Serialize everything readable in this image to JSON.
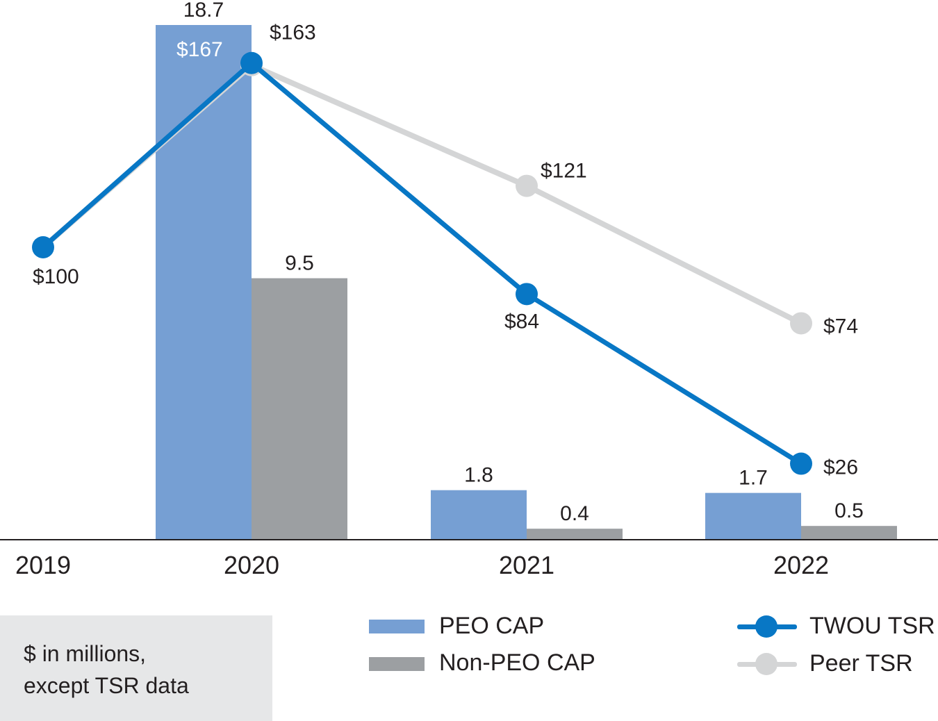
{
  "chart_data": {
    "type": "bar",
    "categories": [
      "2019",
      "2020",
      "2021",
      "2022"
    ],
    "series": [
      {
        "name": "PEO CAP",
        "kind": "bar",
        "color": "#769fd3",
        "values": [
          null,
          18.7,
          1.8,
          1.7
        ],
        "labels": [
          "",
          "18.7",
          "1.8",
          "1.7"
        ]
      },
      {
        "name": "Non-PEO CAP",
        "kind": "bar",
        "color": "#9c9fa2",
        "values": [
          null,
          9.5,
          0.4,
          0.5
        ],
        "labels": [
          "",
          "9.5",
          "0.4",
          "0.5"
        ]
      },
      {
        "name": "TWOU TSR",
        "kind": "line",
        "color": "#0877c5",
        "values": [
          100,
          163,
          84,
          26
        ],
        "labels": [
          "$100",
          "$163",
          "$84",
          "$26"
        ]
      },
      {
        "name": "Peer TSR",
        "kind": "line",
        "color": "#d4d5d6",
        "values": [
          100,
          167,
          121,
          74
        ],
        "labels": [
          "",
          "$167",
          "$121",
          "$74"
        ]
      }
    ],
    "bar_axis": {
      "unit": "$ in millions",
      "ylim": [
        0,
        18.7
      ]
    },
    "tsr_axis": {
      "unit": "$",
      "ylim": [
        0,
        176
      ]
    },
    "title": "",
    "xlabel": "",
    "ylabel": ""
  },
  "note": {
    "line1": "$ in millions,",
    "line2": "except TSR data"
  },
  "legend": {
    "peo_cap": "PEO CAP",
    "non_peo_cap": "Non-PEO CAP",
    "twou_tsr": "TWOU TSR",
    "peer_tsr": "Peer TSR"
  }
}
